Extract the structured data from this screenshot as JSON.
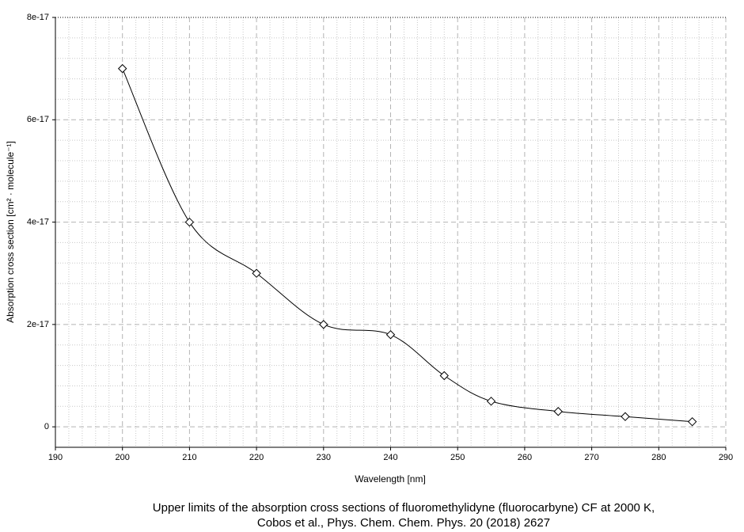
{
  "chart_data": {
    "type": "line",
    "xlabel": "Wavelength [nm]",
    "ylabel": "Absorption cross section [cm² · molecule⁻¹]",
    "caption": [
      "Upper limits of the absorption cross sections of fluoromethylidyne (fluorocarbyne) CF at 2000 K,",
      "Cobos et al., Phys. Chem. Chem. Phys. 20 (2018) 2627"
    ],
    "x": [
      200,
      210,
      220,
      230,
      240,
      248,
      255,
      265,
      275,
      285
    ],
    "series": [
      {
        "color": "#000000",
        "values": [
          7e-17,
          4e-17,
          3e-17,
          2e-17,
          1.8e-17,
          1e-17,
          5e-18,
          3e-18,
          2e-18,
          1e-18
        ]
      }
    ],
    "xlim": [
      190,
      290
    ],
    "xticks": [
      190,
      200,
      210,
      220,
      230,
      240,
      250,
      260,
      270,
      280,
      290
    ],
    "ylim": [
      -4e-18,
      8e-17
    ],
    "yticks": [
      0,
      2e-17,
      4e-17,
      6e-17,
      8e-17
    ],
    "grid": true
  }
}
